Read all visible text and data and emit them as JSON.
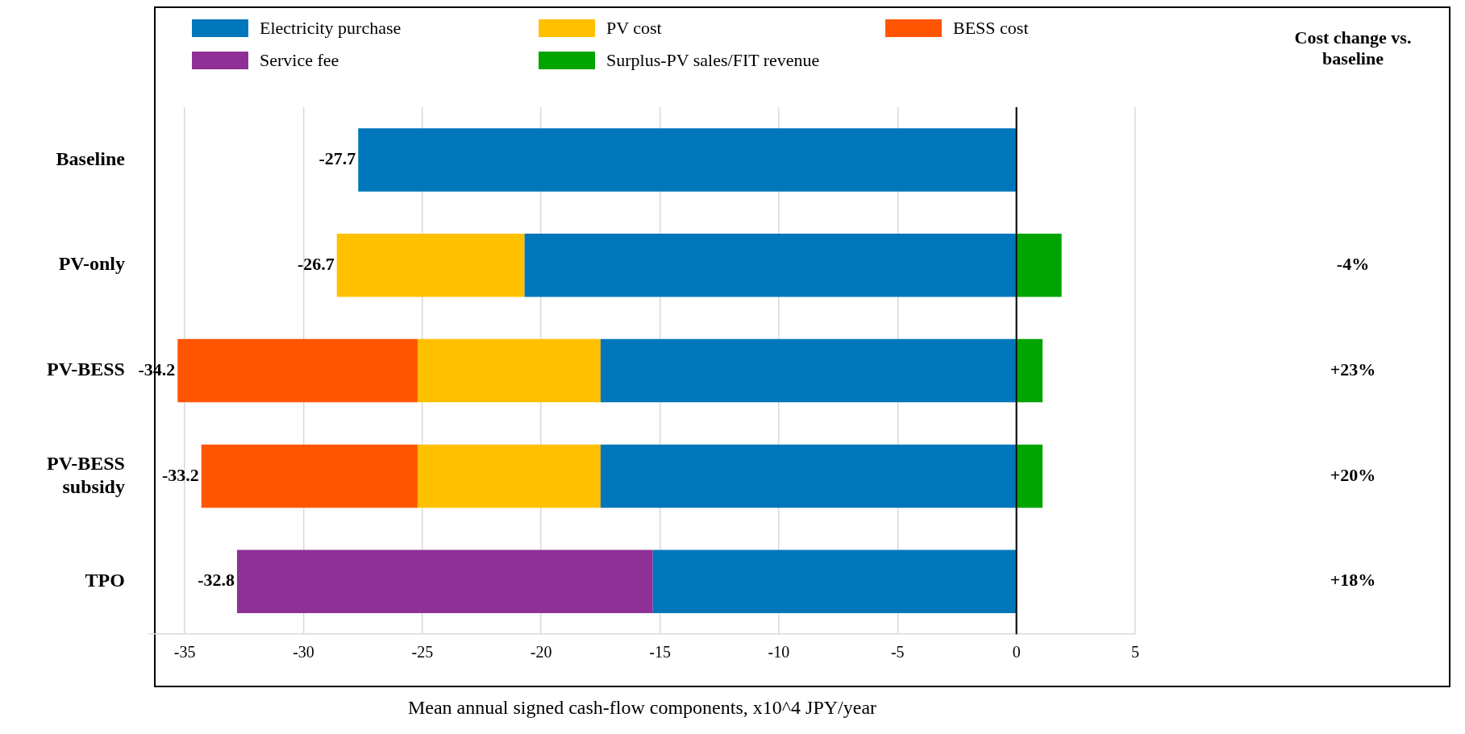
{
  "chart_data": {
    "type": "bar",
    "orientation": "horizontal",
    "stacked": true,
    "categories": [
      "Baseline",
      "PV-only",
      "PV-BESS",
      "PV-BESS subsidy",
      "TPO"
    ],
    "series": [
      {
        "name": "Electricity purchase",
        "color": "#0077bb",
        "values": [
          -27.7,
          -20.7,
          -17.5,
          -17.5,
          -15.3
        ]
      },
      {
        "name": "PV cost",
        "color": "#ffc000",
        "values": [
          null,
          -7.9,
          -7.7,
          -7.7,
          null
        ]
      },
      {
        "name": "BESS cost",
        "color": "#ff5500",
        "values": [
          null,
          null,
          -10.1,
          -9.1,
          null
        ]
      },
      {
        "name": "Service fee",
        "color": "#8e3096",
        "values": [
          null,
          null,
          null,
          null,
          -17.5
        ]
      },
      {
        "name": "Surplus-PV sales/FIT revenue",
        "color": "#00a400",
        "values": [
          null,
          1.9,
          1.1,
          1.1,
          null
        ]
      }
    ],
    "totals": [
      "-27.7",
      "-26.7",
      "-34.2",
      "-33.2",
      "-32.8"
    ],
    "xlabel": "Mean annual signed cash-flow components, x10^4 JPY/year",
    "xlim": [
      -36.5,
      5
    ],
    "xticks": [
      -35,
      -30,
      -25,
      -20,
      -15,
      -10,
      -5,
      0,
      5
    ],
    "grid": "x",
    "legend": "top",
    "ref_lines": [
      {
        "axis": "x",
        "value": 0,
        "color": "#000000"
      }
    ],
    "annotations": [
      "Cost change vs. baseline",
      "-4%",
      "+23%",
      "+20%",
      "+18%"
    ]
  }
}
